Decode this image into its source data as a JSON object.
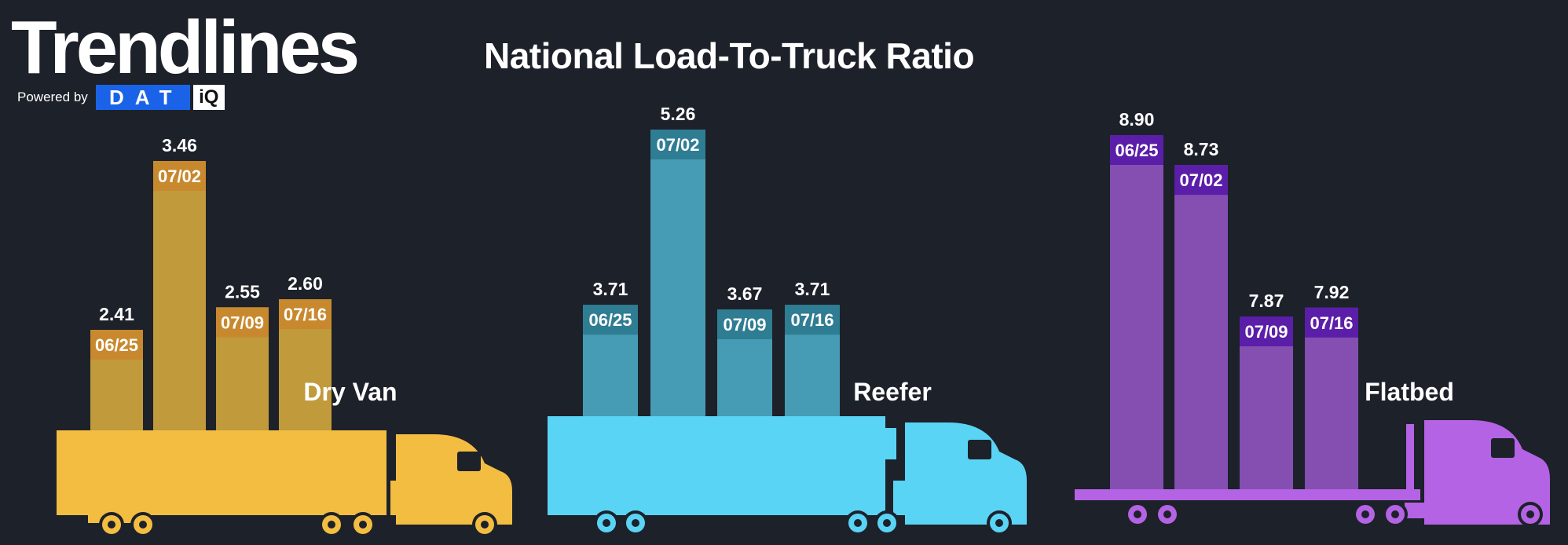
{
  "header": {
    "brand_title": "Trendlines",
    "powered_by": "Powered by",
    "logo_dat": "DAT",
    "logo_iq": "iQ",
    "title": "National Load-To-Truck Ratio"
  },
  "chart_data": [
    {
      "type": "bar",
      "name": "Dry Van",
      "categories": [
        "06/25",
        "07/02",
        "07/09",
        "07/16"
      ],
      "values": [
        2.41,
        3.46,
        2.55,
        2.6
      ],
      "value_labels": [
        "2.41",
        "3.46",
        "2.55",
        "2.60"
      ],
      "colors": {
        "bar": "#c9a13c",
        "tag": "#c8892e",
        "truck": "#f3bd42"
      }
    },
    {
      "type": "bar",
      "name": "Reefer",
      "categories": [
        "06/25",
        "07/02",
        "07/09",
        "07/16"
      ],
      "values": [
        3.71,
        5.26,
        3.67,
        3.71
      ],
      "value_labels": [
        "3.71",
        "5.26",
        "3.67",
        "3.71"
      ],
      "colors": {
        "bar": "#4aa3bd",
        "tag": "#2f7d93",
        "truck": "#5ad4f4"
      }
    },
    {
      "type": "bar",
      "name": "Flatbed",
      "categories": [
        "06/25",
        "07/02",
        "07/09",
        "07/16"
      ],
      "values": [
        8.9,
        8.73,
        7.87,
        7.92
      ],
      "value_labels": [
        "8.90",
        "8.73",
        "7.87",
        "7.92"
      ],
      "colors": {
        "bar": "#8a52b8",
        "tag": "#5b1ea8",
        "truck": "#b463e4"
      }
    }
  ]
}
